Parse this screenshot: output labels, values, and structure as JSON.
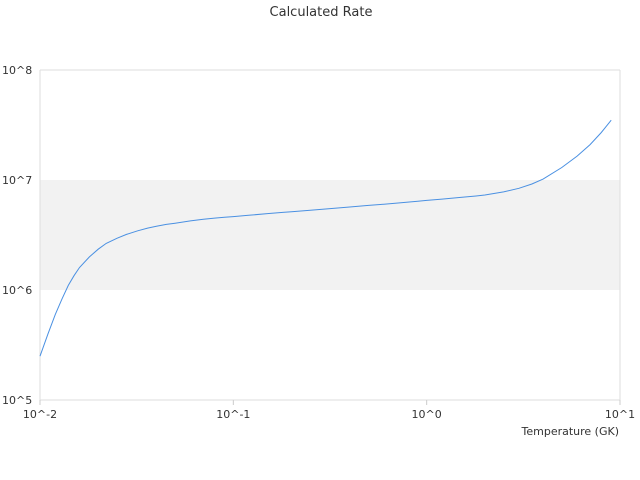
{
  "chart_data": {
    "type": "line",
    "title": "Calculated Rate",
    "xlabel": "Temperature (GK)",
    "ylabel": "",
    "x_scale": "log",
    "y_scale": "log",
    "xlim": [
      0.01,
      10
    ],
    "ylim": [
      100000,
      100000000
    ],
    "x_ticks": [
      {
        "value": 0.01,
        "label": "10^-2"
      },
      {
        "value": 0.1,
        "label": "10^-1"
      },
      {
        "value": 1,
        "label": "10^0"
      },
      {
        "value": 10,
        "label": "10^1"
      }
    ],
    "y_ticks": [
      {
        "value": 100000,
        "label": "10^5"
      },
      {
        "value": 1000000,
        "label": "10^6"
      },
      {
        "value": 10000000,
        "label": "10^7"
      },
      {
        "value": 100000000,
        "label": "10^8"
      }
    ],
    "band": {
      "from": 1000000,
      "to": 10000000,
      "color": "#f2f2f2"
    },
    "grid": false,
    "legend": "none",
    "series": [
      {
        "color": "#4a90e2",
        "x": [
          0.01,
          0.011,
          0.012,
          0.013,
          0.014,
          0.015,
          0.016,
          0.018,
          0.02,
          0.022,
          0.025,
          0.028,
          0.032,
          0.036,
          0.04,
          0.045,
          0.05,
          0.06,
          0.07,
          0.08,
          0.09,
          0.1,
          0.12,
          0.15,
          0.18,
          0.2,
          0.25,
          0.3,
          0.4,
          0.5,
          0.6,
          0.7,
          0.8,
          0.9,
          1.0,
          1.2,
          1.5,
          1.8,
          2.0,
          2.5,
          3.0,
          3.5,
          4.0,
          5.0,
          6.0,
          7.0,
          8.0,
          9.0
        ],
        "y": [
          250000,
          400000,
          600000,
          830000,
          1100000,
          1350000,
          1600000,
          2000000,
          2350000,
          2650000,
          2950000,
          3200000,
          3450000,
          3650000,
          3800000,
          3950000,
          4050000,
          4250000,
          4400000,
          4500000,
          4580000,
          4650000,
          4780000,
          4950000,
          5080000,
          5150000,
          5300000,
          5450000,
          5680000,
          5870000,
          6030000,
          6170000,
          6300000,
          6410000,
          6520000,
          6700000,
          6950000,
          7150000,
          7300000,
          7800000,
          8400000,
          9200000,
          10200000,
          13000000,
          16500000,
          21000000,
          27000000,
          35000000
        ]
      }
    ]
  }
}
